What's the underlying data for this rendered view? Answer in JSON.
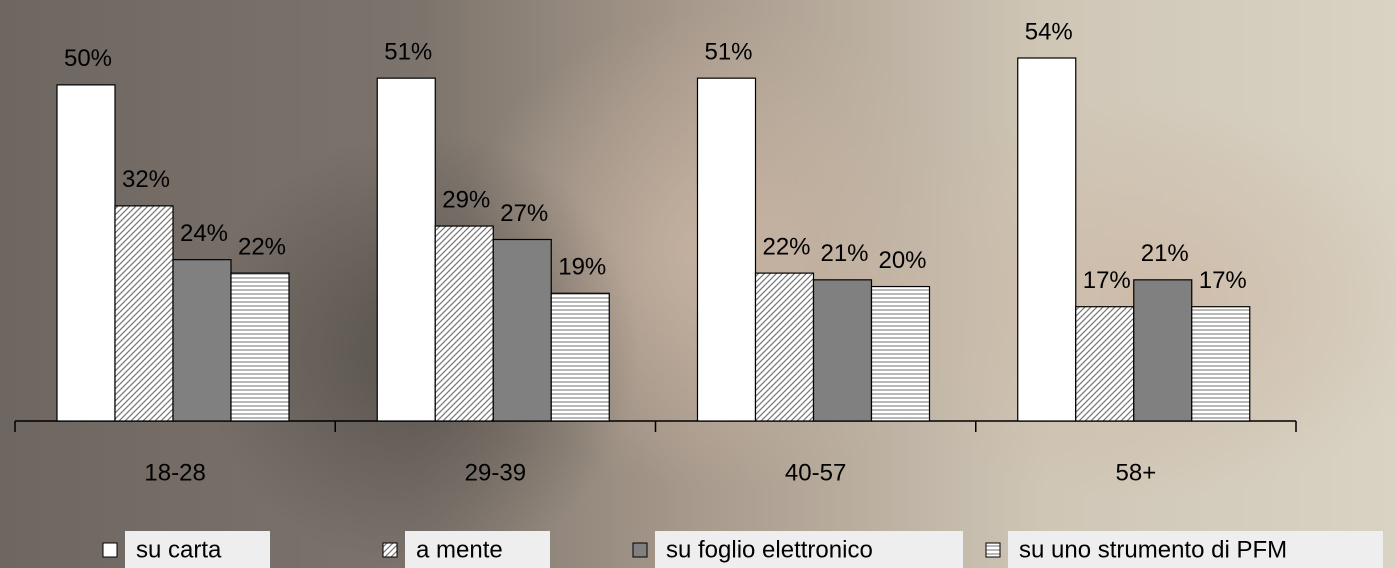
{
  "chart_data": {
    "type": "bar",
    "categories": [
      "18-28",
      "29-39",
      "40-57",
      "58+"
    ],
    "series": [
      {
        "name": "su carta",
        "color": "#ffffff",
        "pattern": "none",
        "values": [
          50,
          51,
          51,
          54
        ],
        "value_labels": [
          "50%",
          "51%",
          "51%",
          "54%"
        ]
      },
      {
        "name": "a mente",
        "color": "#ffffff",
        "pattern": "diagonal",
        "values": [
          32,
          29,
          22,
          17
        ],
        "value_labels": [
          "32%",
          "29%",
          "22%",
          "17%"
        ]
      },
      {
        "name": "su foglio elettronico",
        "color": "#808080",
        "pattern": "none",
        "values": [
          24,
          27,
          21,
          21
        ],
        "value_labels": [
          "24%",
          "27%",
          "21%",
          "21%"
        ]
      },
      {
        "name": "su uno strumento di PFM",
        "color": "#ffffff",
        "pattern": "horizontal",
        "values": [
          22,
          19,
          20,
          17
        ],
        "value_labels": [
          "22%",
          "19%",
          "20%",
          "17%"
        ]
      }
    ],
    "legend": "bottom"
  }
}
